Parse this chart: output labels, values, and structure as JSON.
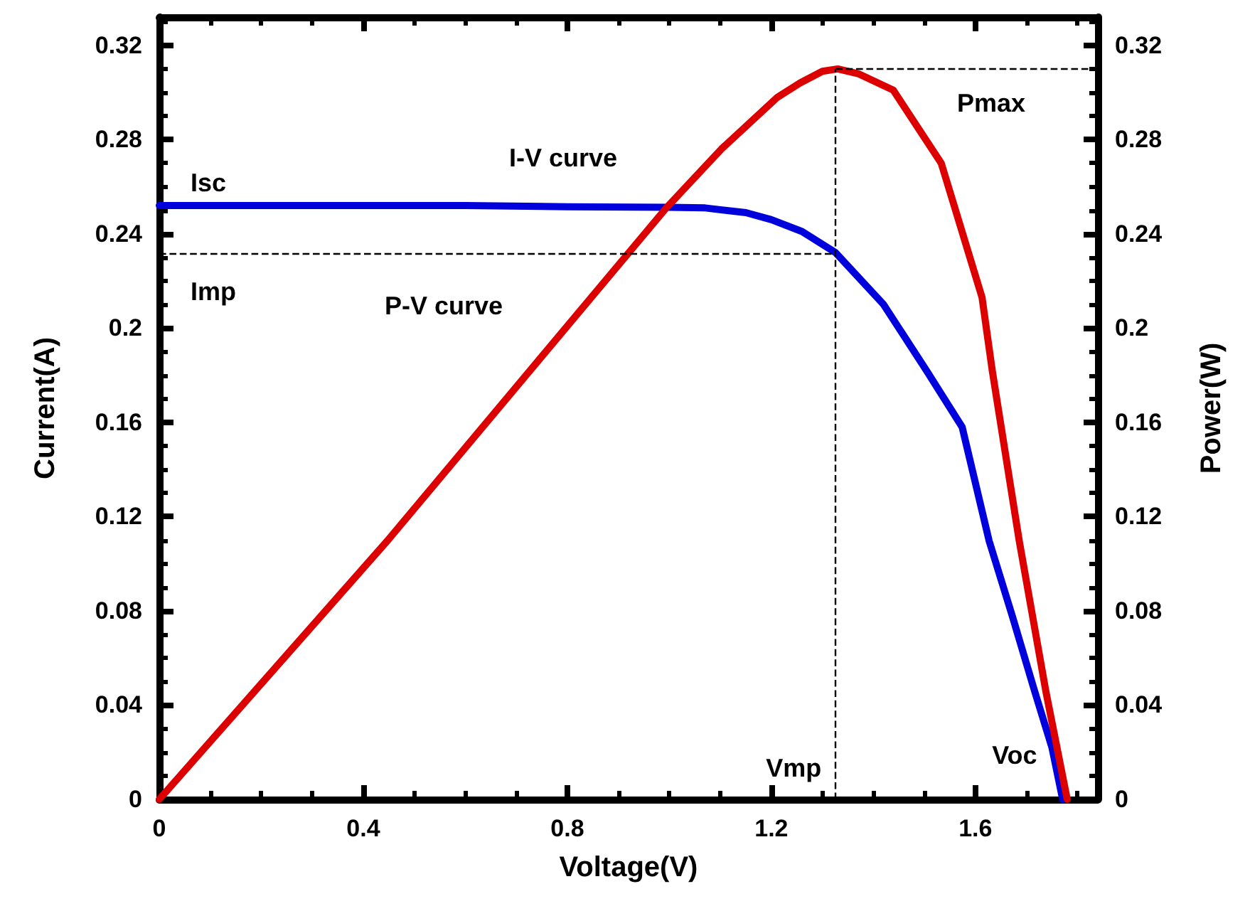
{
  "chart_data": {
    "type": "line",
    "xlabel": "Voltage(V)",
    "ylabel": "Current(A)",
    "y2label": "Power(W)",
    "xlim": [
      0,
      1.84
    ],
    "xticks": [
      0,
      0.4,
      0.8,
      1.2,
      1.6
    ],
    "ylim": [
      0,
      0.332
    ],
    "yticks": [
      0,
      0.04,
      0.08,
      0.12,
      0.16,
      0.2,
      0.24,
      0.28,
      0.32
    ],
    "y2lim": [
      0,
      0.332
    ],
    "y2ticks": [
      0,
      0.04,
      0.08,
      0.12,
      0.16,
      0.2,
      0.24,
      0.28,
      0.32
    ],
    "marker": "none",
    "line_style": "solid",
    "series": [
      {
        "color": "#0000dd",
        "x": [
          0,
          0.2,
          0.4,
          0.6,
          0.8,
          1.0,
          1.07,
          1.15,
          1.2,
          1.26,
          1.326,
          1.42,
          1.504,
          1.574,
          1.627,
          1.672,
          1.716,
          1.75,
          1.771
        ],
        "values": [
          0.252,
          0.252,
          0.252,
          0.252,
          0.2515,
          0.2513,
          0.251,
          0.249,
          0.246,
          0.241,
          0.232,
          0.21,
          0.182,
          0.158,
          0.1096,
          0.078,
          0.046,
          0.022,
          0
        ]
      },
      {
        "color": "#dd0000",
        "axis": "y2",
        "x": [
          0,
          0.4466,
          0.994,
          1.102,
          1.212,
          1.256,
          1.3,
          1.33,
          1.37,
          1.439,
          1.533,
          1.613,
          1.633,
          1.686,
          1.738,
          1.78
        ],
        "values": [
          0,
          0.1096,
          0.251,
          0.276,
          0.298,
          0.304,
          0.309,
          0.31,
          0.308,
          0.301,
          0.27,
          0.213,
          0.182,
          0.1096,
          0.046,
          0
        ]
      }
    ],
    "ref_lines": [
      {
        "axis": "y",
        "value": 0.2317,
        "label": "Imp",
        "line_style": "dashed",
        "color": "#000000"
      },
      {
        "axis": "x",
        "value": 1.326,
        "label": "Vmp",
        "line_style": "dashed",
        "color": "#000000"
      },
      {
        "axis": "y2",
        "value": 0.31,
        "label": "Pmax",
        "line_style": "dashed",
        "color": "#000000"
      }
    ],
    "annotations": [
      {
        "text": "Isc",
        "x": 0,
        "y": 0.252
      },
      "I-V curve",
      "P-V curve",
      {
        "text": "Voc",
        "x": 1.771,
        "y": 0
      }
    ]
  }
}
